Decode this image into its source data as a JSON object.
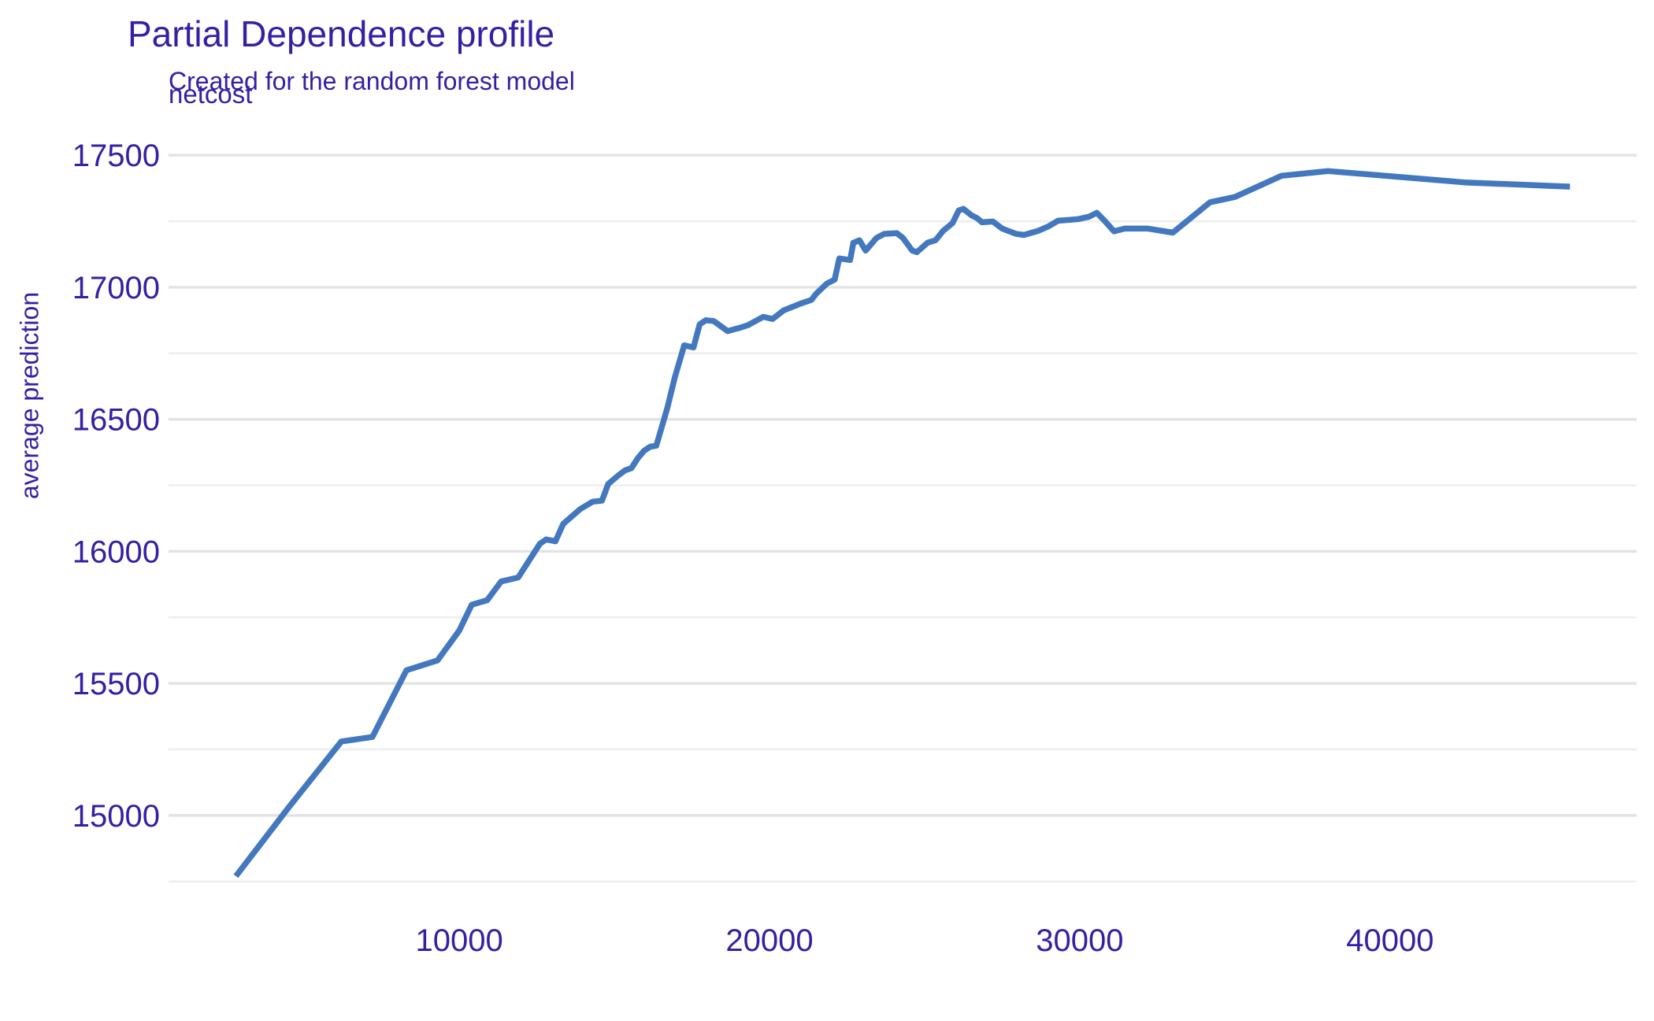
{
  "header": {
    "title": "Partial Dependence profile",
    "subtitle": "Created for the random forest model"
  },
  "facet": {
    "label": "netcost"
  },
  "axes": {
    "y_title": "average prediction",
    "y_tick_labels": [
      "15000",
      "15500",
      "16000",
      "16500",
      "17000",
      "17500"
    ],
    "x_tick_labels": [
      "10000",
      "20000",
      "30000",
      "40000"
    ]
  },
  "colors": {
    "accent_text": "#371ea3",
    "line": "#4378bf",
    "grid_major": "#e3e3e3",
    "grid_minor": "#eeeeee",
    "background": "#ffffff"
  },
  "chart_data": {
    "type": "line",
    "title": "Partial Dependence profile",
    "subtitle": "Created for the random forest model",
    "facet_label": "netcost",
    "xlabel": "netcost",
    "ylabel": "average prediction",
    "xlim": [
      630,
      47950
    ],
    "ylim": [
      14633,
      17575
    ],
    "x_ticks": [
      10000,
      20000,
      30000,
      40000
    ],
    "y_major_ticks": [
      15000,
      15500,
      16000,
      16500,
      17000,
      17500
    ],
    "y_minor_ticks": [
      14750,
      15250,
      15750,
      16250,
      16750,
      17250
    ],
    "grid": "horizontal-only",
    "legend": "none",
    "series": [
      {
        "name": "random forest model",
        "color": "#4378bf",
        "x": [
          2800,
          4500,
          6200,
          7200,
          8300,
          9300,
          10000,
          10400,
          10900,
          11350,
          11900,
          12600,
          12800,
          13100,
          13350,
          13900,
          14300,
          14600,
          14800,
          15100,
          15350,
          15550,
          15750,
          15950,
          16150,
          16350,
          16450,
          16700,
          16950,
          17250,
          17550,
          17750,
          17950,
          18200,
          18650,
          19000,
          19300,
          19800,
          20100,
          20450,
          21000,
          21350,
          21500,
          21850,
          22100,
          22250,
          22600,
          22700,
          22900,
          23100,
          23450,
          23700,
          24100,
          24300,
          24600,
          24750,
          25100,
          25350,
          25600,
          25900,
          26100,
          26250,
          26500,
          26700,
          26850,
          27200,
          27500,
          27700,
          27950,
          28200,
          28650,
          29000,
          29300,
          29650,
          29950,
          30300,
          30550,
          30800,
          31100,
          31450,
          32200,
          33000,
          34200,
          35000,
          36500,
          38000,
          39550,
          42400,
          45800
        ],
        "y": [
          14770,
          15030,
          15280,
          15297,
          15550,
          15587,
          15700,
          15798,
          15815,
          15886,
          15901,
          16029,
          16045,
          16038,
          16104,
          16160,
          16188,
          16192,
          16255,
          16285,
          16307,
          16315,
          16352,
          16380,
          16396,
          16400,
          16440,
          16540,
          16660,
          16780,
          16772,
          16860,
          16875,
          16872,
          16834,
          16845,
          16856,
          16888,
          16880,
          16912,
          16938,
          16952,
          16975,
          17014,
          17029,
          17109,
          17103,
          17168,
          17178,
          17139,
          17187,
          17202,
          17205,
          17187,
          17139,
          17133,
          17169,
          17178,
          17214,
          17243,
          17291,
          17297,
          17273,
          17261,
          17246,
          17249,
          17222,
          17213,
          17202,
          17198,
          17213,
          17231,
          17252,
          17255,
          17258,
          17267,
          17282,
          17252,
          17212,
          17222,
          17222,
          17207,
          17322,
          17342,
          17422,
          17440,
          17425,
          17397,
          17381
        ]
      }
    ]
  }
}
